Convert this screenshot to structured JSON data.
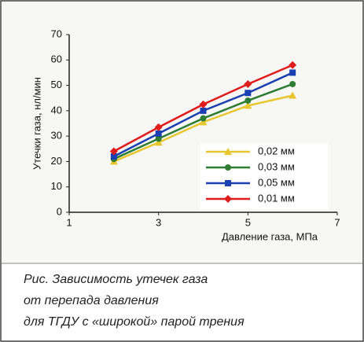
{
  "chart_data": {
    "type": "line",
    "x_label": "Давление газа, МПа",
    "y_label": "Утечки газа, нл/мин",
    "x": [
      2,
      3,
      4,
      5,
      6
    ],
    "series": [
      {
        "name": "0,02 мм",
        "color": "#e8c62e",
        "marker": "triangle",
        "values": [
          20,
          27.5,
          35.5,
          42,
          46
        ]
      },
      {
        "name": "0,03 мм",
        "color": "#2e7d32",
        "marker": "circle",
        "values": [
          21,
          29,
          37,
          44,
          50.5
        ]
      },
      {
        "name": "0,05 мм",
        "color": "#1a3fb0",
        "marker": "square",
        "values": [
          22,
          31,
          40,
          47,
          55
        ]
      },
      {
        "name": "0,01 мм",
        "color": "#e01b1b",
        "marker": "diamond",
        "values": [
          24,
          33.5,
          42.5,
          50.5,
          58
        ]
      }
    ],
    "xlim": [
      1,
      7
    ],
    "xticks": [
      1,
      3,
      5,
      7
    ],
    "ylim": [
      0,
      70
    ],
    "yticks": [
      0,
      10,
      20,
      30,
      40,
      50,
      60,
      70
    ],
    "grid": false
  },
  "caption": [
    "Рис. Зависимость утечек газа",
    "от перепада давления",
    "для ТГДУ с «широкой» парой трения"
  ]
}
